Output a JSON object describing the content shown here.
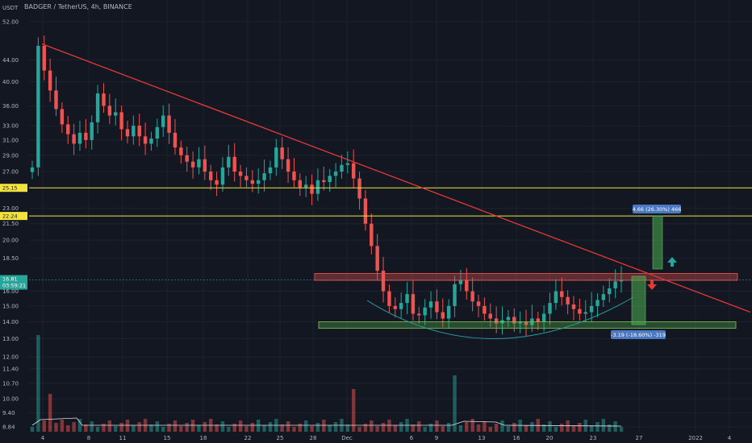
{
  "header": {
    "title": "BADGER / TetherUS, 4h, BINANCE",
    "quote_unit": "USDT"
  },
  "chart_data": {
    "type": "candlestick",
    "title": "BADGER / TetherUS, 4h, BINANCE",
    "ylim": [
      8.84,
      56.0
    ],
    "y_scale": "log",
    "y_ticks": [
      52.0,
      44.0,
      40.0,
      36.0,
      33.0,
      31.0,
      29.0,
      27.0,
      23.0,
      21.5,
      20.0,
      18.5,
      16.0,
      15.0,
      14.0,
      13.0,
      12.0,
      11.4,
      10.7,
      10.0,
      9.4,
      8.84
    ],
    "x_ticks": [
      "4",
      "8",
      "11",
      "15",
      "18",
      "22",
      "25",
      "28",
      "Dec",
      "6",
      "9",
      "13",
      "16",
      "20",
      "23",
      "27",
      "2022",
      "4"
    ],
    "price_lines": [
      {
        "value": 25.15,
        "label": "25.15",
        "color": "#f2e33c"
      },
      {
        "value": 22.24,
        "label": "22.24",
        "color": "#f2e33c"
      }
    ],
    "current_price": {
      "value": "16.81",
      "countdown": "03:59:21",
      "color": "#26a69a"
    },
    "trendline": {
      "from": {
        "x": 4,
        "y": 47.2
      },
      "to": {
        "x": 93,
        "y": 14.5
      },
      "color": "#e53935"
    },
    "resistance_zone": {
      "from_y": 16.9,
      "to_y": 17.3
    },
    "support_zone": {
      "from_y": 13.7,
      "to_y": 14.0
    },
    "measurements": [
      {
        "label": "4.66 (26.30%) 466",
        "direction": "up"
      },
      {
        "label": "-3.19 (-18.60%) -319",
        "direction": "down"
      }
    ],
    "series": [
      {
        "close": [
          27.5,
          46.8,
          42.0,
          38.5,
          35.5,
          33.2,
          31.8,
          30.5,
          32.0,
          31.0,
          33.5,
          38.0,
          36.0,
          34.5,
          35.0,
          32.5,
          31.5,
          33.0,
          31.5,
          30.5,
          31.2,
          32.8,
          34.5,
          32.0,
          30.0,
          29.0,
          28.2,
          27.5,
          28.5,
          27.0,
          26.0,
          25.5,
          27.5,
          28.8,
          27.0,
          26.5,
          26.0,
          25.6,
          26.0,
          26.8,
          27.5,
          30.0,
          28.5,
          27.0,
          26.0,
          25.2,
          25.5,
          24.5,
          26.0,
          25.8,
          26.5,
          27.0,
          27.8,
          28.0,
          26.2,
          24.0,
          21.5,
          19.5,
          17.5,
          16.0,
          15.0,
          14.8,
          15.2,
          15.8,
          14.5,
          14.4,
          14.9,
          15.3,
          14.6,
          14.2,
          15.0,
          16.5,
          16.8,
          16.0,
          15.3,
          15.0,
          14.5,
          14.2,
          13.9,
          14.1,
          14.3,
          13.9,
          14.0,
          13.8,
          14.2,
          14.0,
          14.5,
          15.2,
          16.0,
          15.6,
          15.1,
          14.8,
          14.5,
          14.6,
          15.0,
          15.4,
          15.8,
          16.2,
          16.7,
          16.8
        ]
      }
    ],
    "volume_label": "Volume"
  }
}
